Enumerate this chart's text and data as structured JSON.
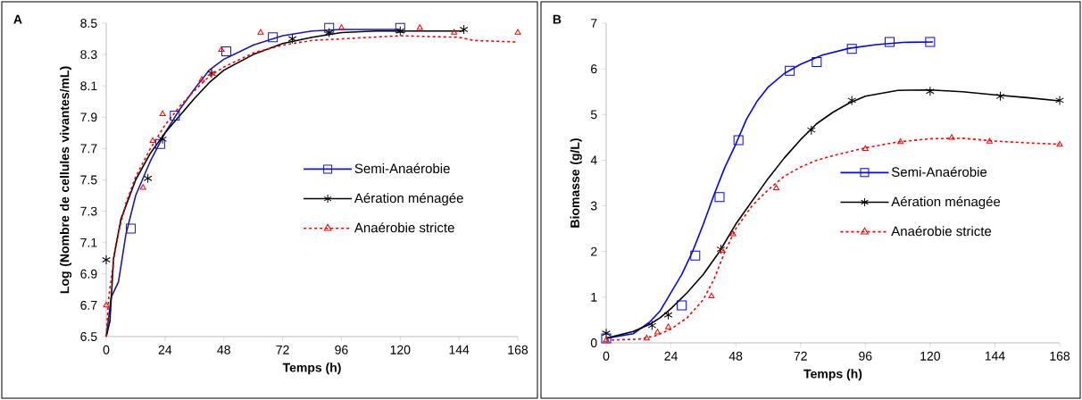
{
  "chart_data": [
    {
      "type": "scatter",
      "annotations": [
        "A"
      ],
      "xlabel": "Temps (h)",
      "ylabel": "Log (Nombre de cellules vivantes/mL)",
      "xlim": [
        0,
        168
      ],
      "xticks": [
        0,
        24,
        48,
        72,
        96,
        120,
        144,
        168
      ],
      "ylim": [
        6.5,
        8.5
      ],
      "yticks": [
        6.5,
        6.7,
        6.9,
        7.1,
        7.3,
        7.5,
        7.7,
        7.9,
        8.1,
        8.3,
        8.5
      ],
      "legend": "right",
      "series": [
        {
          "type": "scatter",
          "name": "Semi-Anaérobie",
          "color": "#1a1aa6",
          "marker": "square",
          "line_style": "solid",
          "x": [
            10,
            22,
            28,
            49,
            68,
            91,
            120
          ],
          "values": [
            7.19,
            7.73,
            7.91,
            8.32,
            8.41,
            8.47,
            8.47
          ]
        },
        {
          "type": "scatter",
          "name": "Aération ménagée",
          "color": "#000000",
          "marker": "cross",
          "line_style": "solid",
          "x": [
            0,
            17,
            23,
            43,
            76,
            91,
            120,
            146
          ],
          "values": [
            6.99,
            7.51,
            7.76,
            8.18,
            8.4,
            8.44,
            8.45,
            8.46
          ]
        },
        {
          "type": "scatter",
          "name": "Anaérobie stricte",
          "color": "#ff0000",
          "marker": "triangle",
          "line_style": "dashed",
          "x": [
            0,
            15,
            19,
            23,
            39,
            43,
            47,
            63,
            96,
            128,
            142,
            168
          ],
          "values": [
            6.7,
            7.45,
            7.75,
            7.92,
            8.14,
            8.18,
            8.33,
            8.44,
            8.47,
            8.47,
            8.44,
            8.44
          ]
        },
        {
          "type": "line",
          "color": "#1a1aa6",
          "marker": "none",
          "line_style": "solid",
          "x": [
            0,
            2,
            5,
            8,
            12,
            18,
            24,
            30,
            36,
            42,
            48,
            60,
            72,
            84,
            96,
            120
          ],
          "values": [
            6.5,
            6.75,
            6.85,
            7.15,
            7.4,
            7.62,
            7.8,
            7.95,
            8.08,
            8.2,
            8.27,
            8.36,
            8.42,
            8.45,
            8.46,
            8.46
          ]
        },
        {
          "type": "line",
          "color": "#000000",
          "marker": "none",
          "line_style": "solid",
          "x": [
            0,
            1.5,
            3,
            6,
            12,
            18,
            24,
            30,
            36,
            42,
            48,
            60,
            72,
            84,
            96,
            110,
            146
          ],
          "values": [
            6.5,
            6.6,
            7.0,
            7.25,
            7.5,
            7.67,
            7.8,
            7.91,
            8.02,
            8.12,
            8.2,
            8.3,
            8.37,
            8.41,
            8.44,
            8.45,
            8.45
          ]
        },
        {
          "type": "line",
          "color": "#ff0000",
          "marker": "none",
          "line_style": "dashed",
          "x": [
            0,
            1,
            4,
            8,
            12,
            18,
            24,
            30,
            36,
            42,
            48,
            60,
            72,
            84,
            96,
            120,
            144,
            150,
            168
          ],
          "values": [
            6.5,
            6.75,
            7.1,
            7.35,
            7.52,
            7.7,
            7.85,
            7.97,
            8.07,
            8.16,
            8.22,
            8.31,
            8.36,
            8.39,
            8.4,
            8.42,
            8.41,
            8.39,
            8.38
          ]
        }
      ]
    },
    {
      "type": "scatter",
      "annotations": [
        "B"
      ],
      "xlabel": "Temps (h)",
      "ylabel": "Biomasse (g/L)",
      "xlim": [
        0,
        168
      ],
      "xticks": [
        0,
        24,
        48,
        72,
        96,
        120,
        144,
        168
      ],
      "ylim": [
        0,
        7
      ],
      "yticks": [
        0,
        1,
        2,
        3,
        4,
        5,
        6,
        7
      ],
      "legend": "right",
      "series": [
        {
          "type": "scatter",
          "name": "Semi-Anaérobie",
          "color": "#0000ff",
          "marker": "square",
          "line_style": "solid",
          "x": [
            0,
            28,
            33,
            42,
            49,
            68,
            78,
            91,
            105,
            120
          ],
          "values": [
            0.1,
            0.82,
            1.91,
            3.19,
            4.44,
            5.96,
            6.15,
            6.44,
            6.59,
            6.59
          ]
        },
        {
          "type": "scatter",
          "name": "Aération ménagée",
          "color": "#000000",
          "marker": "cross",
          "line_style": "solid",
          "x": [
            0,
            17,
            23,
            42.5,
            76,
            91,
            120,
            146,
            168
          ],
          "values": [
            0.21,
            0.38,
            0.61,
            2.05,
            4.66,
            5.31,
            5.51,
            5.4,
            5.31
          ]
        },
        {
          "type": "scatter",
          "name": "Anaérobie stricte",
          "color": "#ff0000",
          "marker": "triangle",
          "line_style": "dashed",
          "x": [
            0,
            15,
            19,
            23,
            39,
            43,
            47,
            63,
            96,
            109,
            128,
            142,
            168
          ],
          "values": [
            0.06,
            0.1,
            0.23,
            0.34,
            1.02,
            2.02,
            2.38,
            3.39,
            4.25,
            4.4,
            4.49,
            4.41,
            4.34
          ]
        },
        {
          "type": "line",
          "color": "#0000ff",
          "marker": "none",
          "line_style": "solid",
          "x": [
            0,
            10,
            16,
            20,
            24,
            28,
            32,
            36,
            40,
            44,
            48,
            52,
            56,
            60,
            66,
            72,
            80,
            90,
            100,
            110,
            121
          ],
          "values": [
            0.1,
            0.2,
            0.45,
            0.7,
            1.1,
            1.5,
            2.0,
            2.6,
            3.25,
            3.85,
            4.35,
            4.9,
            5.3,
            5.6,
            5.9,
            6.1,
            6.3,
            6.45,
            6.53,
            6.58,
            6.59
          ]
        },
        {
          "type": "line",
          "color": "#000000",
          "marker": "none",
          "line_style": "solid",
          "x": [
            0,
            10,
            16,
            20,
            24,
            30,
            36,
            42,
            48,
            54,
            60,
            66,
            72,
            78,
            84,
            90,
            96,
            108,
            120,
            132,
            144,
            156,
            168
          ],
          "values": [
            0.1,
            0.25,
            0.4,
            0.55,
            0.75,
            1.1,
            1.5,
            2.0,
            2.6,
            3.1,
            3.6,
            4.05,
            4.45,
            4.8,
            5.05,
            5.25,
            5.4,
            5.53,
            5.54,
            5.5,
            5.43,
            5.37,
            5.3
          ]
        },
        {
          "type": "line",
          "color": "#ff0000",
          "marker": "none",
          "line_style": "dashed",
          "x": [
            0,
            12,
            18,
            24,
            30,
            36,
            40,
            44,
            48,
            54,
            60,
            66,
            72,
            78,
            84,
            96,
            108,
            120,
            132,
            144,
            156,
            168
          ],
          "values": [
            0.06,
            0.08,
            0.15,
            0.3,
            0.55,
            0.95,
            1.4,
            2.0,
            2.5,
            3.0,
            3.35,
            3.65,
            3.85,
            4.0,
            4.1,
            4.27,
            4.4,
            4.47,
            4.48,
            4.42,
            4.38,
            4.35
          ]
        }
      ]
    }
  ]
}
